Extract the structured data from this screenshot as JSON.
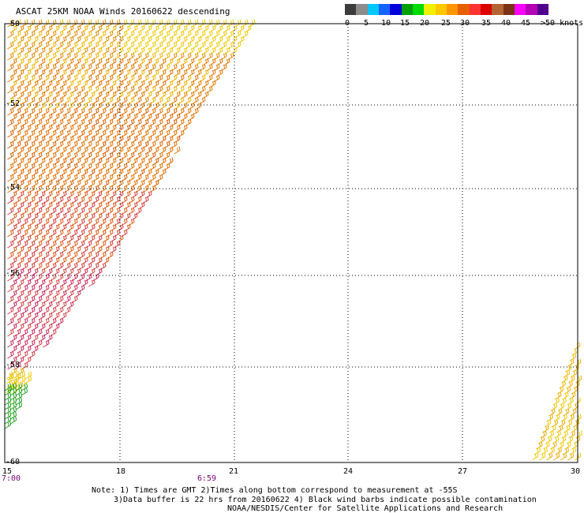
{
  "title": "ASCAT 25KM NOAA Winds 20160622 descending",
  "colorbar": {
    "colors": [
      "#3c3c3c",
      "#8c8c8c",
      "#00c8ff",
      "#1464ff",
      "#0000dc",
      "#00a000",
      "#00dc00",
      "#f0f000",
      "#ffc800",
      "#ff9600",
      "#e65f00",
      "#ff3232",
      "#dc0000",
      "#b46432",
      "#7a3214",
      "#ff00ff",
      "#b400b4",
      "#50008c"
    ],
    "labels": [
      "0",
      "5",
      "10",
      "15",
      "20",
      "25",
      "30",
      "35",
      "40",
      "45",
      ">50 knots"
    ]
  },
  "axes": {
    "lat_labels": [
      "-50",
      "-52",
      "-54",
      "-56",
      "-58",
      "-60"
    ],
    "lon_labels": [
      "15",
      "18",
      "21",
      "24",
      "27",
      "30"
    ]
  },
  "times": [
    "7:00",
    "6:59"
  ],
  "notes": [
    "Note: 1) Times are GMT 2)Times along bottom correspond to measurement at -55S",
    "3)Data buffer is 22 hrs from 20160622 4) Black wind barbs indicate possible contamination",
    "NOAA/NESDIS/Center for Satellite Applications and Research"
  ]
}
